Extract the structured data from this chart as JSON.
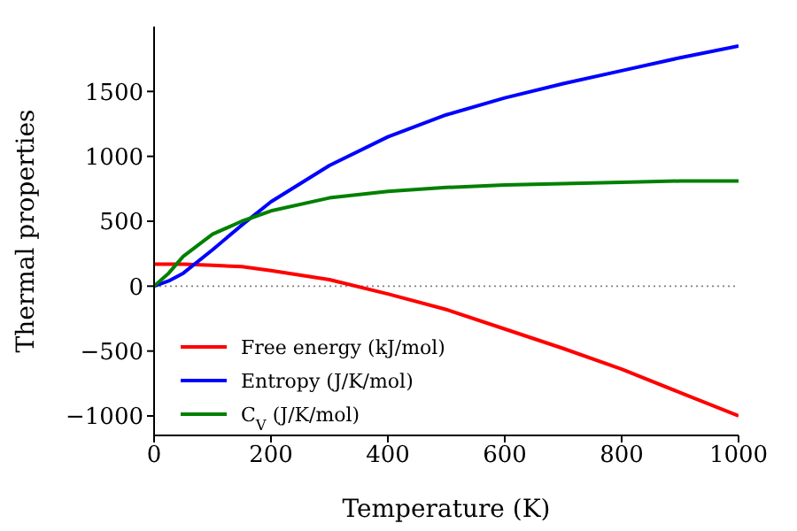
{
  "chart_data": {
    "type": "line",
    "xlabel": "Temperature (K)",
    "ylabel": "Thermal properties",
    "x": [
      0,
      25,
      50,
      100,
      150,
      200,
      300,
      400,
      500,
      600,
      700,
      800,
      900,
      1000
    ],
    "series": [
      {
        "name": "Free energy (kJ/mol)",
        "color": "#ff0000",
        "values": [
          170,
          170,
          170,
          160,
          150,
          120,
          50,
          -60,
          -180,
          -330,
          -480,
          -640,
          -820,
          -1000
        ]
      },
      {
        "name": "Entropy (J/K/mol)",
        "color": "#0000ff",
        "values": [
          0,
          40,
          100,
          280,
          470,
          650,
          930,
          1150,
          1320,
          1450,
          1560,
          1660,
          1760,
          1850
        ]
      },
      {
        "name": "C$_{V}$ (J/K/mol)",
        "color": "#008000",
        "values": [
          0,
          100,
          230,
          400,
          500,
          580,
          680,
          730,
          760,
          780,
          790,
          800,
          810,
          810
        ]
      }
    ],
    "xlim": [
      0,
      1000
    ],
    "xticks": [
      0,
      200,
      400,
      600,
      800,
      1000
    ],
    "ylim": [
      -1150,
      2000
    ],
    "yticks": [
      -1000,
      -500,
      0,
      500,
      1000,
      1500
    ],
    "ref_lines": [
      {
        "axis": "y",
        "value": 0,
        "color": "#808080",
        "line_style": "dotted"
      }
    ],
    "legend": "bottom left",
    "grid": false,
    "marker": "none",
    "line_style": "solid"
  }
}
